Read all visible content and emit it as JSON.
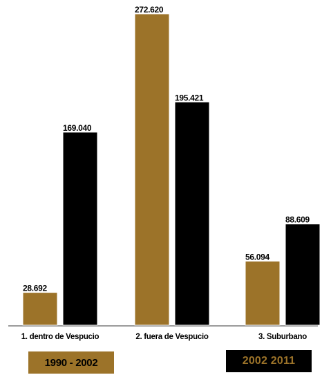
{
  "chart_data": {
    "type": "bar",
    "categories": [
      "1. dentro de Vespucio",
      "2. fuera de Vespucio",
      "3. Suburbano"
    ],
    "series": [
      {
        "name": "1990 - 2002",
        "values": [
          28.692,
          272.62,
          56.094
        ],
        "labels": [
          "28.692",
          "272.620",
          "56.094"
        ],
        "color": "#9c7329"
      },
      {
        "name": "2002  2011",
        "values": [
          169.04,
          195.421,
          88.609
        ],
        "labels": [
          "169.040",
          "195.421",
          "88.609"
        ],
        "color": "#000000"
      }
    ],
    "title": "",
    "xlabel": "",
    "ylabel": "",
    "ylim": [
      0,
      272.62
    ],
    "grid": false,
    "legend": "bottom",
    "legend_text_colors": [
      "#000000",
      "#9c7329"
    ],
    "baseline_color": "#7a7a7a"
  }
}
